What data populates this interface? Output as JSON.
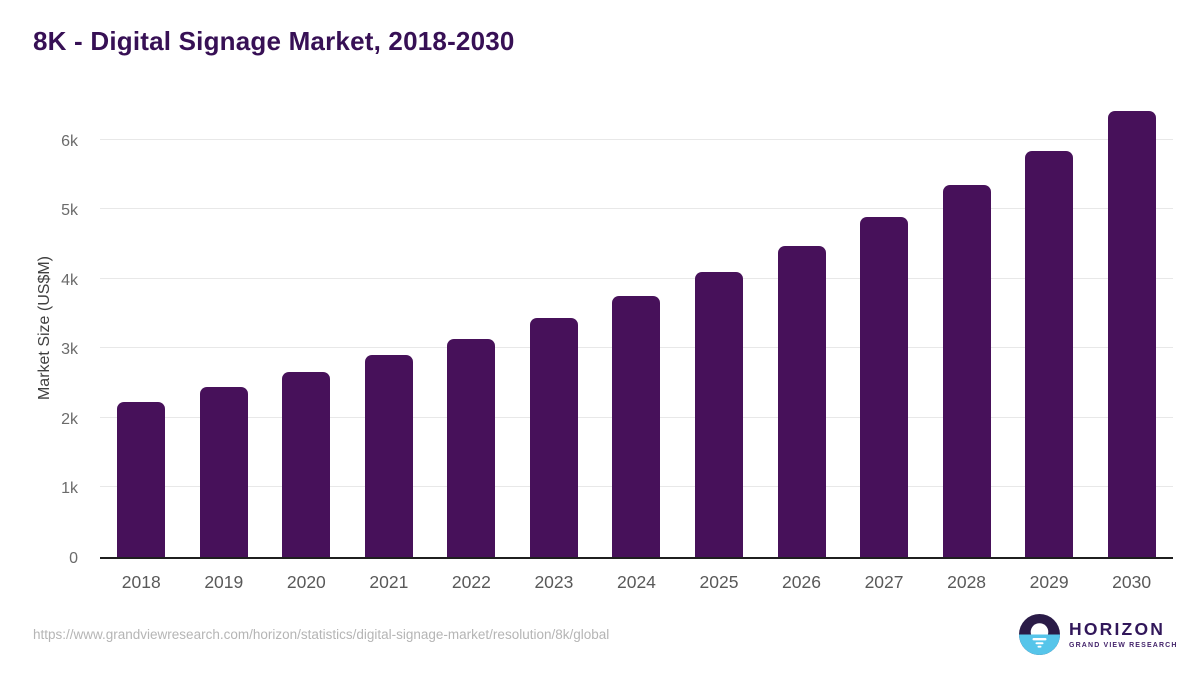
{
  "title": "8K - Digital Signage Market, 2018-2030",
  "chart_data": {
    "type": "bar",
    "categories": [
      "2018",
      "2019",
      "2020",
      "2021",
      "2022",
      "2023",
      "2024",
      "2025",
      "2026",
      "2027",
      "2028",
      "2029",
      "2030"
    ],
    "values": [
      2230,
      2450,
      2660,
      2900,
      3140,
      3430,
      3760,
      4100,
      4470,
      4890,
      5350,
      5840,
      6420
    ],
    "title": "8K - Digital Signage Market, 2018-2030",
    "xlabel": "",
    "ylabel": "Market Size (US$M)",
    "ylim": [
      0,
      6600
    ],
    "yticks": [
      {
        "value": 0,
        "label": "0"
      },
      {
        "value": 1000,
        "label": "1k"
      },
      {
        "value": 2000,
        "label": "2k"
      },
      {
        "value": 3000,
        "label": "3k"
      },
      {
        "value": 4000,
        "label": "4k"
      },
      {
        "value": 5000,
        "label": "5k"
      },
      {
        "value": 6000,
        "label": "6k"
      }
    ],
    "grid": true,
    "legend": null,
    "bar_color": "#47115A"
  },
  "footer": {
    "source_url": "https://www.grandviewresearch.com/horizon/statistics/digital-signage-market/resolution/8k/global",
    "logo": {
      "name": "HORIZON",
      "tagline": "GRAND VIEW RESEARCH",
      "icon_dark_color": "#2a1b47",
      "icon_blue_color": "#56c5ea"
    }
  },
  "colors": {
    "title": "#371055",
    "axis_line": "#1f1f1f",
    "gridline": "#e8e8e8",
    "x_tick_label": "#595959",
    "y_tick_label": "#6b6b6b",
    "y_axis_title": "#404040",
    "source_text": "#b5b5b5",
    "background": "#ffffff"
  }
}
